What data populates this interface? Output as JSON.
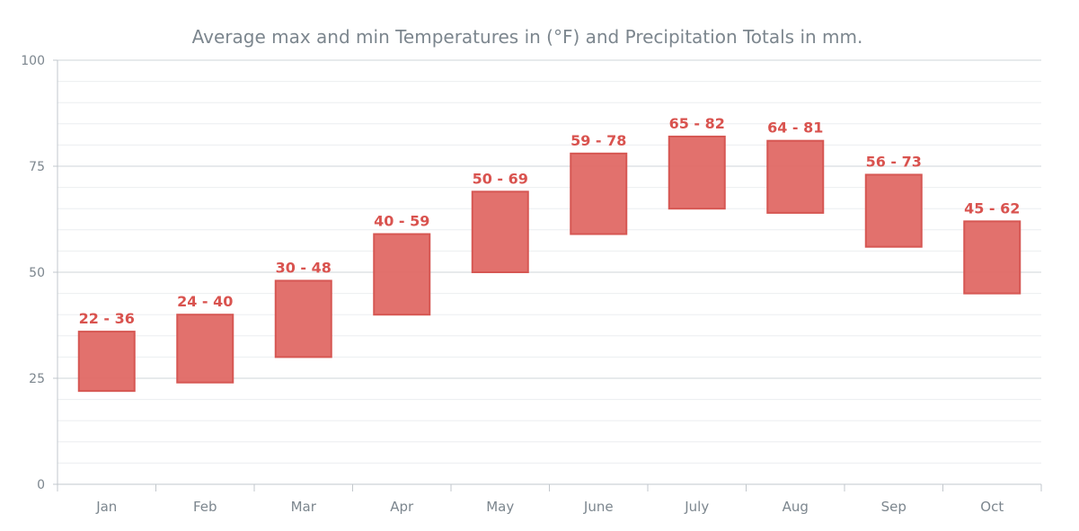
{
  "chart_data": {
    "type": "bar",
    "subtype": "range-column",
    "title": "Average max and min Temperatures in (°F) and Precipitation Totals in mm.",
    "xlabel": "",
    "ylabel": "",
    "categories": [
      "Jan",
      "Feb",
      "Mar",
      "Apr",
      "May",
      "June",
      "July",
      "Aug",
      "Sep",
      "Oct"
    ],
    "series": [
      {
        "low": [
          22,
          24,
          30,
          40,
          50,
          59,
          65,
          64,
          56,
          45
        ],
        "high": [
          36,
          40,
          48,
          59,
          69,
          78,
          82,
          81,
          73,
          62
        ]
      }
    ],
    "data_labels": [
      "22 - 36",
      "24 - 40",
      "30 - 48",
      "40 - 59",
      "50 - 69",
      "59 - 78",
      "65 - 82",
      "64 - 81",
      "56 - 73",
      "45 - 62"
    ],
    "ylim": [
      0,
      100
    ],
    "yticks": [
      0,
      25,
      50,
      75,
      100
    ],
    "grid": true,
    "colors": {
      "bar_fill": "#e06965",
      "bar_stroke": "#d65753",
      "label": "#d9534f",
      "major_grid": "#cfd4d8",
      "minor_grid": "#eceef0",
      "axis": "#c2c7cc"
    }
  }
}
